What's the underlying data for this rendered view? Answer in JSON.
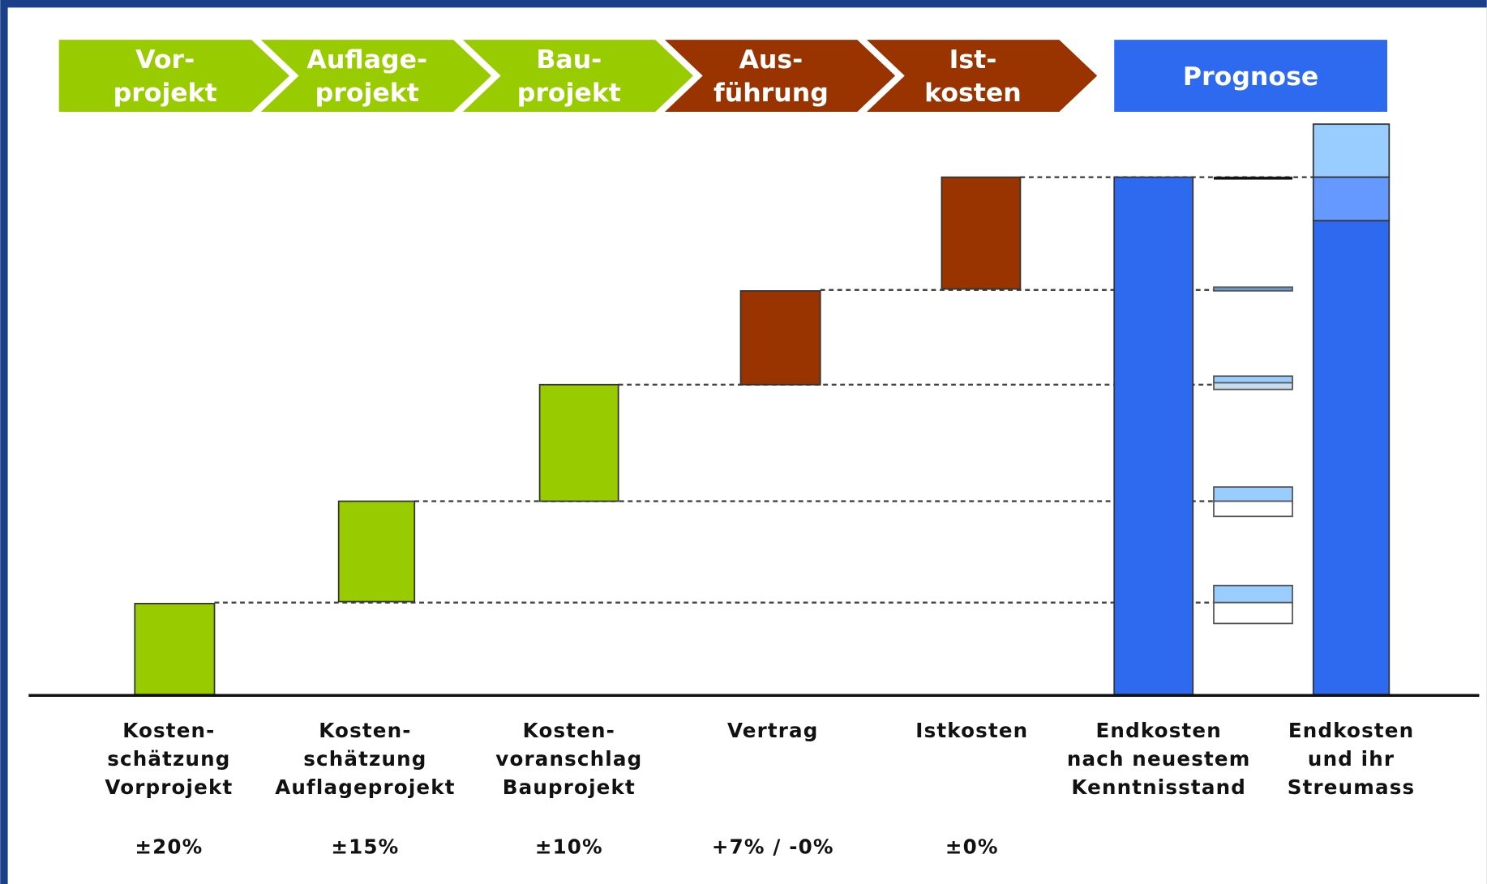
{
  "phases": [
    {
      "lines": [
        "Vor-",
        "projekt"
      ]
    },
    {
      "lines": [
        "Auflage-",
        "projekt"
      ]
    },
    {
      "lines": [
        "Bau-",
        "projekt"
      ]
    },
    {
      "lines": [
        "Aus-",
        "führung"
      ]
    },
    {
      "lines": [
        "Ist-",
        "kosten"
      ]
    }
  ],
  "prognosis": "Prognose",
  "columns": [
    {
      "lines": [
        "Kosten-",
        "schätzung",
        "Vorprojekt"
      ],
      "tolerance": "±20%"
    },
    {
      "lines": [
        "Kosten-",
        "schätzung",
        "Auflageprojekt"
      ],
      "tolerance": "±15%"
    },
    {
      "lines": [
        "Kosten-",
        "voranschlag",
        "Bauprojekt"
      ],
      "tolerance": "±10%"
    },
    {
      "lines": [
        "Vertrag"
      ],
      "tolerance": "+7% / -0%"
    },
    {
      "lines": [
        "Istkosten"
      ],
      "tolerance": "±0%"
    },
    {
      "lines": [
        "Endkosten",
        "nach neuestem",
        "Kenntnisstand"
      ]
    },
    {
      "lines": [
        "Endkosten",
        "und ihr",
        "Streumass"
      ]
    }
  ]
}
